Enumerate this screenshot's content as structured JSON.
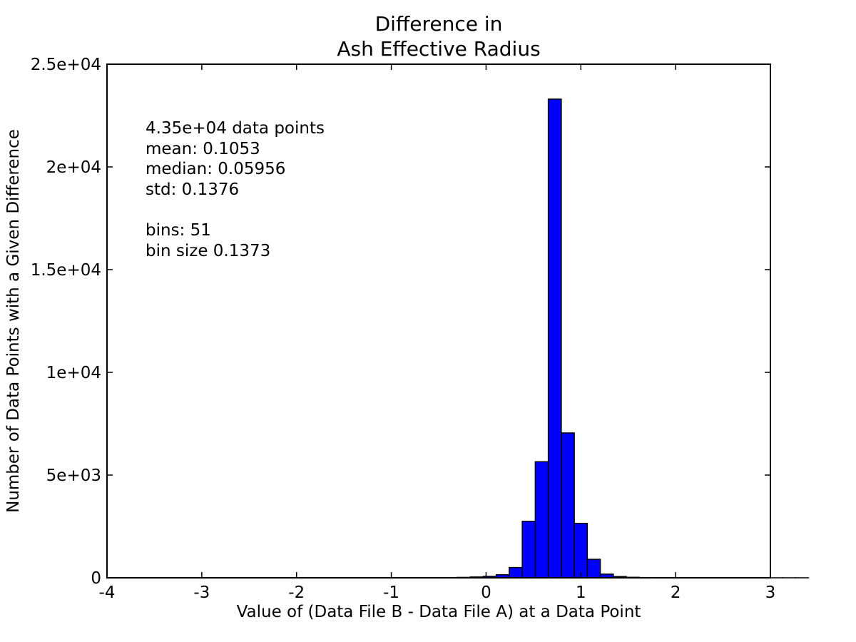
{
  "chart_data": {
    "type": "bar",
    "title_lines": [
      "Difference in",
      "Ash Effective Radius"
    ],
    "xlabel": "Value of (Data File B - Data File A) at a Data Point",
    "ylabel": "Number of Data Points with a Given Difference",
    "xlim": [
      -4,
      3
    ],
    "ylim": [
      0,
      25000
    ],
    "x_ticks": [
      -4,
      -3,
      -2,
      -1,
      0,
      1,
      2,
      3
    ],
    "x_tick_labels": [
      "-4",
      "-3",
      "-2",
      "-1",
      "0",
      "1",
      "2",
      "3"
    ],
    "y_ticks": [
      0,
      5000,
      10000,
      15000,
      20000,
      25000
    ],
    "y_tick_labels": [
      "0",
      "5e+03",
      "1e+04",
      "1.5e+04",
      "2e+04",
      "2.5e+04"
    ],
    "grid": false,
    "bar_color": "#0000ff",
    "bin_start": -3.6,
    "bin_width": 0.1373,
    "values": [
      2,
      1,
      1,
      1,
      1,
      1,
      1,
      1,
      1,
      1,
      1,
      1,
      1,
      1,
      1,
      1,
      1,
      1,
      1,
      1,
      2,
      3,
      5,
      10,
      20,
      40,
      70,
      150,
      500,
      2750,
      5650,
      23300,
      7050,
      2650,
      900,
      180,
      60,
      25,
      12,
      8,
      5,
      4,
      3,
      2,
      2,
      2,
      1,
      1,
      1,
      1,
      1
    ],
    "annotation_lines": [
      "4.35e+04 data points",
      "mean: 0.1053",
      "median: 0.05956",
      "std: 0.1376",
      "",
      "bins: 51",
      "bin size 0.1373"
    ]
  }
}
